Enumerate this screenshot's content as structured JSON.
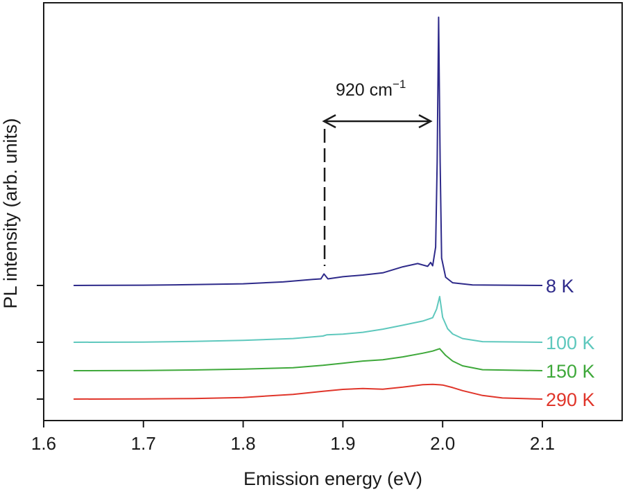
{
  "chart_data": {
    "type": "line",
    "xlabel": "Emission energy (eV)",
    "ylabel": "PL intensity (arb. units)",
    "xlim": [
      1.6,
      2.18
    ],
    "x_ticks": [
      1.6,
      1.7,
      1.8,
      1.9,
      2.0,
      2.1
    ],
    "x_tick_labels": [
      "1.6",
      "1.7",
      "1.8",
      "1.9",
      "2.0",
      "2.1"
    ],
    "grid": false,
    "legend": "inline labels at right end of each curve",
    "annotation": {
      "text": "920 cm",
      "superscript": "−1",
      "from_x": 1.881,
      "to_x": 1.995
    },
    "series": [
      {
        "name": "8 K",
        "color": "#2e2a8a",
        "baseline": 0,
        "x": [
          1.63,
          1.7,
          1.75,
          1.8,
          1.84,
          1.87,
          1.878,
          1.881,
          1.885,
          1.9,
          1.92,
          1.94,
          1.96,
          1.975,
          1.985,
          1.988,
          1.99,
          1.993,
          1.9945,
          1.996,
          1.9975,
          1.999,
          2.003,
          2.01,
          2.03,
          2.1
        ],
        "values": [
          0.0,
          0.1,
          0.3,
          0.6,
          1.3,
          2.2,
          2.4,
          4.2,
          2.4,
          3.2,
          3.8,
          4.6,
          6.8,
          8.0,
          7.0,
          8.4,
          7.2,
          14.0,
          45.0,
          98.0,
          45.0,
          10.0,
          3.0,
          1.0,
          0.2,
          0.0
        ]
      },
      {
        "name": "100 K",
        "color": "#5ec8bd",
        "baseline": 0,
        "x": [
          1.63,
          1.7,
          1.75,
          1.8,
          1.85,
          1.88,
          1.884,
          1.9,
          1.92,
          1.94,
          1.96,
          1.98,
          1.99,
          1.994,
          1.997,
          2.0,
          2.005,
          2.01,
          2.02,
          2.04,
          2.1
        ],
        "values": [
          0.0,
          0.1,
          0.4,
          0.9,
          1.8,
          3.0,
          3.6,
          3.9,
          4.8,
          6.3,
          8.2,
          10.2,
          11.8,
          16.0,
          22.0,
          12.0,
          6.5,
          4.0,
          1.8,
          0.3,
          0.0
        ]
      },
      {
        "name": "150 K",
        "color": "#3ea83a",
        "baseline": 0,
        "x": [
          1.63,
          1.7,
          1.75,
          1.8,
          1.85,
          1.88,
          1.9,
          1.92,
          1.94,
          1.96,
          1.98,
          1.99,
          1.997,
          2.003,
          2.01,
          2.02,
          2.04,
          2.1
        ],
        "values": [
          0.0,
          0.1,
          0.4,
          0.9,
          1.8,
          3.2,
          4.5,
          5.8,
          6.6,
          8.3,
          10.5,
          11.8,
          13.2,
          9.2,
          5.8,
          2.9,
          0.6,
          0.0
        ]
      },
      {
        "name": "290 K",
        "color": "#e0352a",
        "baseline": 0,
        "x": [
          1.63,
          1.7,
          1.75,
          1.8,
          1.85,
          1.88,
          1.9,
          1.92,
          1.94,
          1.96,
          1.98,
          1.99,
          2.0,
          2.01,
          2.02,
          2.04,
          2.06,
          2.1
        ],
        "values": [
          0.0,
          0.1,
          0.3,
          0.9,
          2.6,
          4.3,
          5.4,
          5.9,
          5.5,
          6.6,
          8.0,
          8.2,
          7.8,
          6.4,
          4.7,
          2.0,
          0.6,
          0.0
        ]
      }
    ]
  }
}
